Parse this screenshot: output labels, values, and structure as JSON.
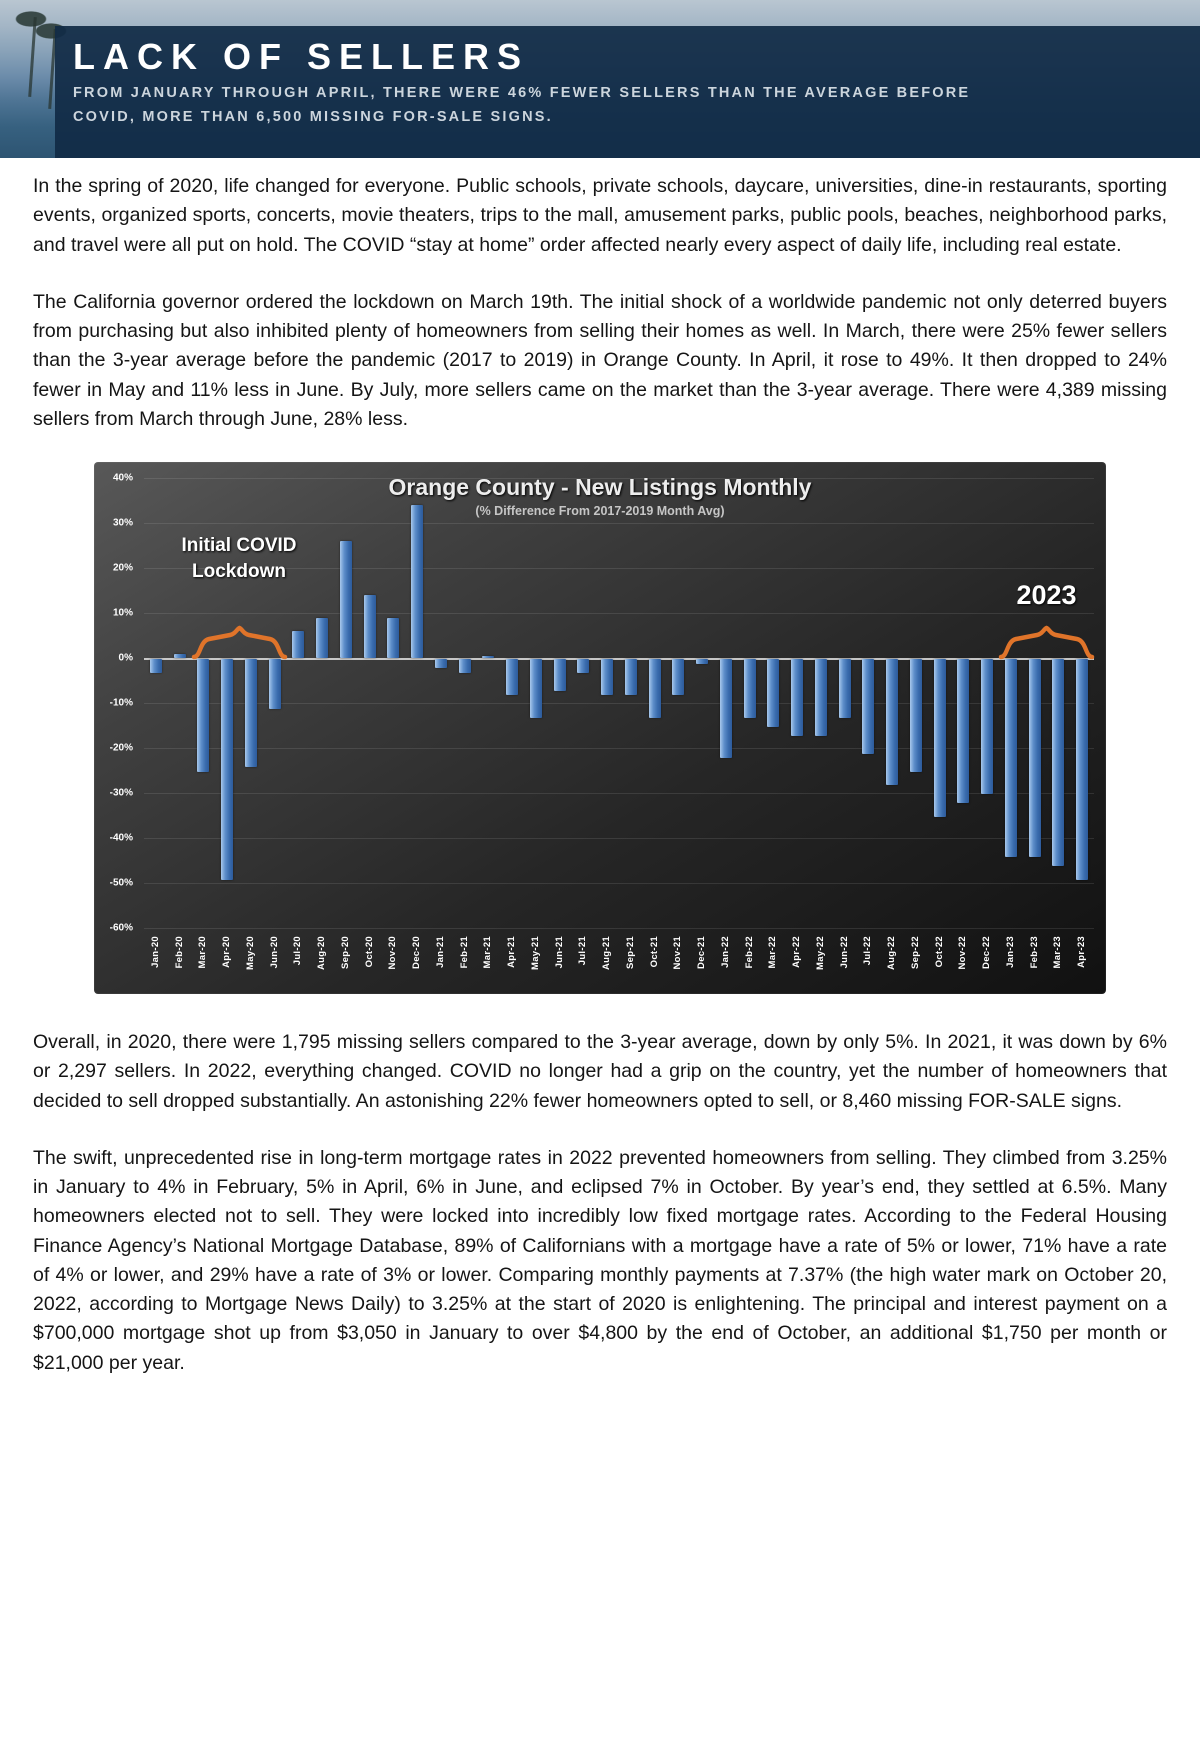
{
  "header": {
    "title": "LACK OF SELLERS",
    "subtitle_line1": "FROM JANUARY THROUGH APRIL, THERE WERE 46% FEWER SELLERS THAN THE AVERAGE BEFORE",
    "subtitle_line2": "COVID, MORE THAN 6,500 MISSING FOR-SALE SIGNS."
  },
  "paragraphs": {
    "p1": "In the spring of 2020, life changed for everyone. Public schools, private schools, daycare, universities, dine-in restaurants, sporting events, organized sports, concerts, movie theaters, trips to the mall, amusement parks, public pools, beaches, neighborhood parks, and travel were all put on hold. The COVID “stay at home” order affected nearly every aspect of daily life, including real estate.",
    "p2": "The California governor ordered the lockdown on March 19th. The initial shock of a worldwide pandemic not only deterred buyers from purchasing but also inhibited plenty of homeowners from selling their homes as well. In March, there were 25% fewer sellers than the 3-year average before the pandemic (2017 to 2019) in Orange County. In April, it rose to 49%. It then dropped to 24% fewer in May and 11% less in June. By July, more sellers came on the market than the 3-year average. There were 4,389 missing sellers from March through June, 28% less.",
    "p3": "Overall, in 2020, there were 1,795 missing sellers compared to the 3-year average, down by only 5%. In 2021, it was down by 6% or 2,297 sellers. In 2022, everything changed. COVID no longer had a grip on the country, yet the number of homeowners that decided to sell dropped substantially. An astonishing 22% fewer homeowners opted to sell, or 8,460 missing FOR-SALE signs.",
    "p4": "The swift, unprecedented rise in long-term mortgage rates in 2022 prevented homeowners from selling. They climbed from 3.25% in January to 4% in February, 5% in April, 6% in June, and eclipsed 7% in October. By year’s end, they settled at 6.5%. Many homeowners elected not to sell. They were locked into incredibly low fixed mortgage rates. According to the Federal Housing Finance Agency’s National Mortgage Database, 89% of Californians with a mortgage have a rate of 5% or lower, 71% have a rate of 4% or lower, and 29% have a rate of 3% or lower. Comparing monthly payments at 7.37% (the high water mark on October 20, 2022, according to Mortgage News Daily) to 3.25% at the start of 2020 is enlightening. The principal and interest payment on a $700,000 mortgage shot up from $3,050 in January to over $4,800 by the end of October, an additional $1,750 per month or $21,000 per year."
  },
  "chart_data": {
    "type": "bar",
    "title": "Orange County - New Listings Monthly",
    "subtitle": "(% Difference From 2017-2019 Month Avg)",
    "y_unit": "%",
    "ylim": [
      -60,
      40
    ],
    "ytick_step": 10,
    "grid": true,
    "bar_color": "#4679b8",
    "accent_color": "#e0742a",
    "categories": [
      "Jan-20",
      "Feb-20",
      "Mar-20",
      "Apr-20",
      "May-20",
      "Jun-20",
      "Jul-20",
      "Aug-20",
      "Sep-20",
      "Oct-20",
      "Nov-20",
      "Dec-20",
      "Jan-21",
      "Feb-21",
      "Mar-21",
      "Apr-21",
      "May-21",
      "Jun-21",
      "Jul-21",
      "Aug-21",
      "Sep-21",
      "Oct-21",
      "Nov-21",
      "Dec-21",
      "Jan-22",
      "Feb-22",
      "Mar-22",
      "Apr-22",
      "May-22",
      "Jun-22",
      "Jul-22",
      "Aug-22",
      "Sep-22",
      "Oct-22",
      "Nov-22",
      "Dec-22",
      "Jan-23",
      "Feb-23",
      "Mar-23",
      "Apr-23"
    ],
    "values": [
      -3,
      1,
      -25,
      -49,
      -24,
      -11,
      6,
      9,
      26,
      14,
      9,
      34,
      -2,
      -3,
      0.5,
      -8,
      -13,
      -7,
      -3,
      -8,
      -8,
      -13,
      -8,
      -1,
      -22,
      -13,
      -15,
      -17,
      -17,
      -13,
      -21,
      -28,
      -25,
      -35,
      -32,
      -30,
      -44,
      -44,
      -46,
      -49
    ],
    "annotations": {
      "lockdown": {
        "text": "Initial COVID Lockdown",
        "span": [
          "Mar-20",
          "Jun-20"
        ]
      },
      "y2023": {
        "text": "2023",
        "span": [
          "Jan-23",
          "Apr-23"
        ]
      }
    }
  }
}
